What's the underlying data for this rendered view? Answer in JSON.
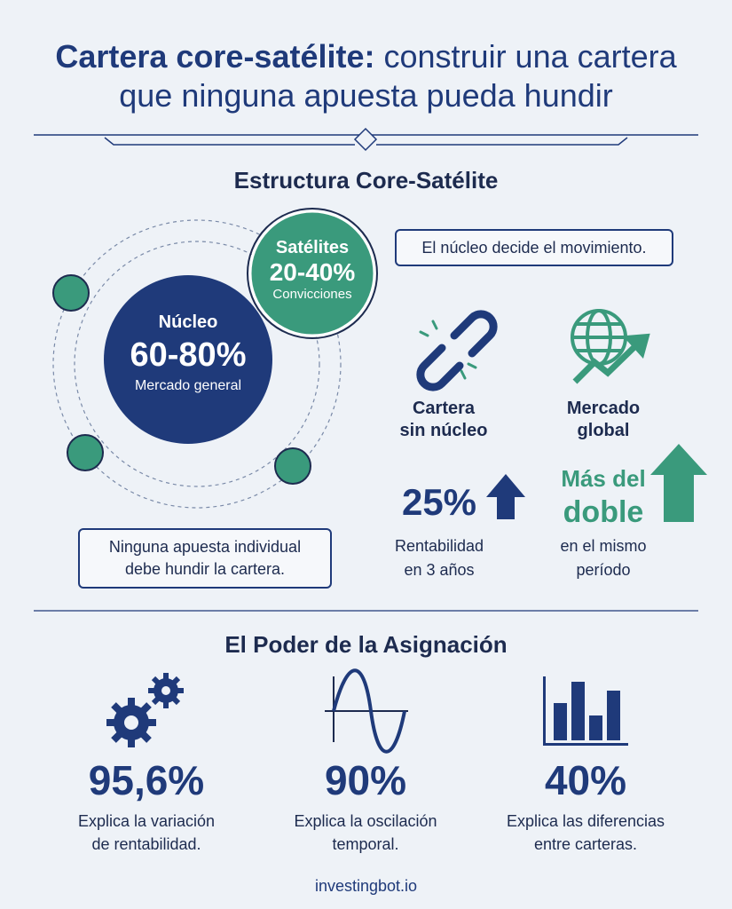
{
  "header": {
    "title_bold": "Cartera core-satélite:",
    "title_lines": [
      "construir una cartera",
      "que ninguna apuesta pueda hundir"
    ]
  },
  "structure": {
    "heading": "Estructura Core-Satélite",
    "core": {
      "label": "Núcleo",
      "value": "60-80%",
      "caption": "Mercado general"
    },
    "satellite": {
      "label": "Satélites",
      "value": "20-40%",
      "caption": "Convicciones"
    },
    "note_top": "El núcleo decide el movimiento.",
    "note_bottom": [
      "Ninguna apuesta individual",
      "debe hundir la cartera."
    ],
    "comparison": [
      {
        "label": [
          "Cartera",
          "sin núcleo"
        ],
        "value": [
          "25%"
        ],
        "caption": [
          "Rentabilidad",
          "en 3 años"
        ]
      },
      {
        "label": [
          "Mercado",
          "global"
        ],
        "value": [
          "Más del",
          "doble"
        ],
        "caption": [
          "en el mismo",
          "período"
        ]
      }
    ]
  },
  "allocation": {
    "heading": "El Poder de la Asignación",
    "stats": [
      {
        "value": "95,6%",
        "caption": [
          "Explica la variación",
          "de rentabilidad."
        ]
      },
      {
        "value": "90%",
        "caption": [
          "Explica la oscilación",
          "temporal."
        ]
      },
      {
        "value": "40%",
        "caption": [
          "Explica las diferencias",
          "entre carteras."
        ]
      }
    ]
  },
  "footer": "investingbot.io"
}
